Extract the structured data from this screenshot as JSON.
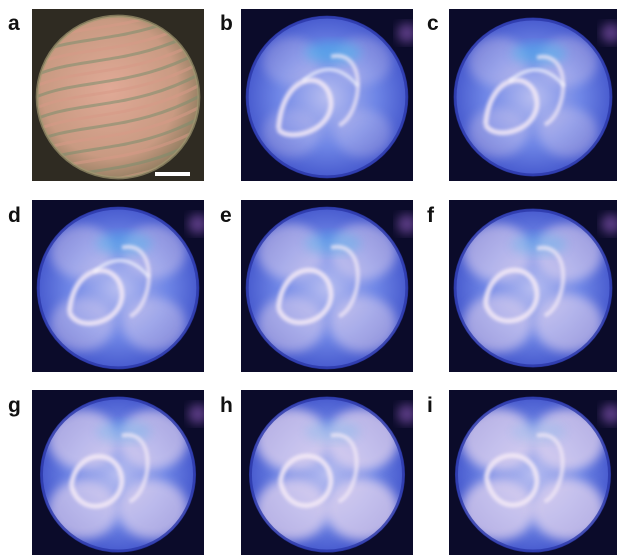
{
  "figure": {
    "panels": [
      {
        "id": "a",
        "label": "a",
        "kind": "birefringent-texture",
        "colors": {
          "bg": "#2f2b22",
          "disc": "#c99a82",
          "stripe": "#7b8f6e"
        }
      },
      {
        "id": "b",
        "label": "b",
        "kind": "fluorescent",
        "stage": 1
      },
      {
        "id": "c",
        "label": "c",
        "kind": "fluorescent",
        "stage": 2
      },
      {
        "id": "d",
        "label": "d",
        "kind": "fluorescent",
        "stage": 3
      },
      {
        "id": "e",
        "label": "e",
        "kind": "fluorescent",
        "stage": 4
      },
      {
        "id": "f",
        "label": "f",
        "kind": "fluorescent",
        "stage": 5
      },
      {
        "id": "g",
        "label": "g",
        "kind": "fluorescent",
        "stage": 6
      },
      {
        "id": "h",
        "label": "h",
        "kind": "fluorescent",
        "stage": 7
      },
      {
        "id": "i",
        "label": "i",
        "kind": "fluorescent",
        "stage": 8
      }
    ],
    "colors": {
      "fluor_bg": "#0b0b2a",
      "fluor_disc_edge": "#3d4fc8",
      "fluor_disc_mid": "#6f86e6",
      "fluor_glow": "#e9d9ef",
      "cyan_accent": "#42b4ea",
      "scale_bar": "#ffffff"
    },
    "scale_bar": {
      "visible": true
    }
  }
}
